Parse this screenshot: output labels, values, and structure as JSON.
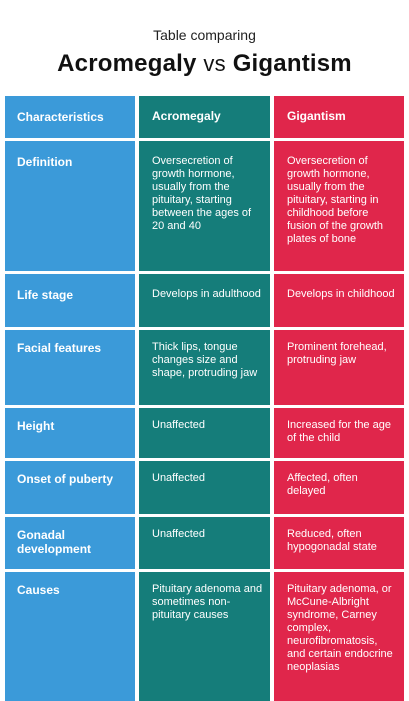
{
  "header": {
    "subtitle": "Table comparing",
    "title_left": "Acromegaly",
    "title_vs": "vs",
    "title_right": "Gigantism"
  },
  "colors": {
    "col1": "#3b9ad9",
    "col2": "#157d7a",
    "col3": "#e0264b"
  },
  "table": {
    "headers": [
      "Characteristics",
      "Acromegaly",
      "Gigantism"
    ],
    "rows": [
      {
        "label": "Definition",
        "acromegaly": "Oversecretion of growth hormone, usually from the pituitary, starting between the ages of 20 and 40",
        "gigantism": "Oversecretion of growth hormone, usually from the pituitary, starting in childhood before fusion of the growth plates of bone"
      },
      {
        "label": "Life stage",
        "acromegaly": "Develops in adulthood",
        "gigantism": "Develops in childhood"
      },
      {
        "label": "Facial features",
        "acromegaly": "Thick lips, tongue changes size and shape, protruding jaw",
        "gigantism": "Prominent forehead, protruding jaw"
      },
      {
        "label": "Height",
        "acromegaly": "Unaffected",
        "gigantism": "Increased for the age of the child"
      },
      {
        "label": "Onset of puberty",
        "acromegaly": "Unaffected",
        "gigantism": "Affected, often delayed"
      },
      {
        "label": "Gonadal development",
        "acromegaly": "Unaffected",
        "gigantism": "Reduced, often hypogonadal state"
      },
      {
        "label": "Causes",
        "acromegaly": "Pituitary adenoma and sometimes non-pituitary causes",
        "gigantism": "Pituitary adenoma, or McCune-Albright syndrome, Carney complex, neurofibromatosis, and certain endocrine neoplasias"
      }
    ]
  }
}
